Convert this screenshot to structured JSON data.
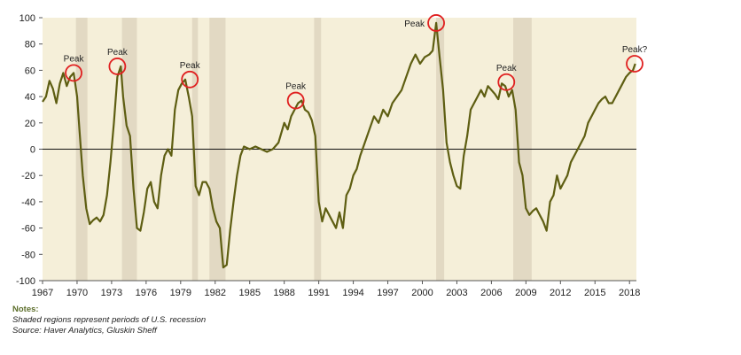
{
  "chart_data": {
    "type": "line",
    "xlim": [
      1967,
      2018.6
    ],
    "ylim": [
      -100,
      100
    ],
    "y_ticks": [
      100,
      80,
      60,
      40,
      20,
      0,
      -20,
      -40,
      -60,
      -80,
      -100
    ],
    "x_ticks": [
      1967,
      1970,
      1973,
      1976,
      1979,
      1982,
      1985,
      1988,
      1991,
      1994,
      1997,
      2000,
      2003,
      2006,
      2009,
      2012,
      2015,
      2018
    ],
    "zero_line": true,
    "grid": false,
    "colors": {
      "line": "#5e5e12",
      "plot_bg": "#f5efd9",
      "recession": "#e2d9c3",
      "peak_circle": "#e02020"
    },
    "recessions": [
      {
        "start": 1969.9,
        "end": 1970.9
      },
      {
        "start": 1973.9,
        "end": 1975.2
      },
      {
        "start": 1980.0,
        "end": 1980.5
      },
      {
        "start": 1981.5,
        "end": 1982.9
      },
      {
        "start": 1990.6,
        "end": 1991.2
      },
      {
        "start": 2001.2,
        "end": 2001.9
      },
      {
        "start": 2007.9,
        "end": 2009.5
      }
    ],
    "annotations": [
      {
        "label": "Peak",
        "x": 1969.7,
        "y": 58
      },
      {
        "label": "Peak",
        "x": 1973.5,
        "y": 63
      },
      {
        "label": "Peak",
        "x": 1979.8,
        "y": 53
      },
      {
        "label": "Peak",
        "x": 1989.0,
        "y": 37
      },
      {
        "label": "Peak",
        "x": 2001.2,
        "y": 96
      },
      {
        "label": "Peak",
        "x": 2007.3,
        "y": 51
      },
      {
        "label": "Peak?",
        "x": 2018.5,
        "y": 65
      }
    ],
    "series": [
      {
        "x": [
          1967.0,
          1967.3,
          1967.6,
          1967.9,
          1968.2,
          1968.5,
          1968.8,
          1969.1,
          1969.4,
          1969.7,
          1970.0,
          1970.2,
          1970.5,
          1970.8,
          1971.1,
          1971.4,
          1971.7,
          1972.0,
          1972.3,
          1972.6,
          1972.9,
          1973.2,
          1973.5,
          1973.8,
          1974.0,
          1974.3,
          1974.6,
          1974.9,
          1975.2,
          1975.5,
          1975.8,
          1976.1,
          1976.4,
          1976.7,
          1977.0,
          1977.3,
          1977.6,
          1977.9,
          1978.2,
          1978.5,
          1978.8,
          1979.1,
          1979.4,
          1979.7,
          1980.0,
          1980.3,
          1980.6,
          1980.9,
          1981.2,
          1981.5,
          1981.8,
          1982.1,
          1982.4,
          1982.7,
          1983.0,
          1983.3,
          1983.6,
          1983.9,
          1984.2,
          1984.5,
          1985.0,
          1985.5,
          1986.0,
          1986.5,
          1987.0,
          1987.5,
          1988.0,
          1988.3,
          1988.6,
          1988.9,
          1989.2,
          1989.5,
          1989.8,
          1990.1,
          1990.4,
          1990.7,
          1991.0,
          1991.3,
          1991.6,
          1991.9,
          1992.2,
          1992.5,
          1992.8,
          1993.1,
          1993.4,
          1993.7,
          1994.0,
          1994.3,
          1994.6,
          1995.0,
          1995.4,
          1995.8,
          1996.2,
          1996.6,
          1997.0,
          1997.4,
          1997.8,
          1998.2,
          1998.6,
          1999.0,
          1999.4,
          1999.8,
          2000.2,
          2000.6,
          2000.9,
          2001.2,
          2001.5,
          2001.8,
          2002.1,
          2002.4,
          2002.7,
          2003.0,
          2003.3,
          2003.6,
          2003.9,
          2004.2,
          2004.5,
          2004.8,
          2005.1,
          2005.4,
          2005.7,
          2006.0,
          2006.3,
          2006.6,
          2006.9,
          2007.2,
          2007.5,
          2007.8,
          2008.1,
          2008.4,
          2008.7,
          2009.0,
          2009.3,
          2009.6,
          2009.9,
          2010.2,
          2010.5,
          2010.8,
          2011.1,
          2011.4,
          2011.7,
          2012.0,
          2012.3,
          2012.6,
          2012.9,
          2013.2,
          2013.5,
          2013.8,
          2014.1,
          2014.4,
          2014.7,
          2015.0,
          2015.3,
          2015.6,
          2015.9,
          2016.2,
          2016.5,
          2016.8,
          2017.1,
          2017.4,
          2017.7,
          2018.0,
          2018.3,
          2018.5
        ],
        "values": [
          36,
          40,
          52,
          46,
          35,
          50,
          58,
          48,
          55,
          58,
          40,
          15,
          -20,
          -45,
          -57,
          -54,
          -52,
          -55,
          -50,
          -35,
          -10,
          20,
          55,
          63,
          40,
          18,
          10,
          -30,
          -60,
          -62,
          -48,
          -30,
          -25,
          -40,
          -45,
          -20,
          -5,
          0,
          -5,
          30,
          45,
          50,
          53,
          40,
          25,
          -28,
          -35,
          -25,
          -25,
          -30,
          -45,
          -55,
          -60,
          -90,
          -88,
          -62,
          -40,
          -20,
          -5,
          2,
          0,
          2,
          0,
          -2,
          0,
          5,
          20,
          15,
          25,
          30,
          35,
          37,
          30,
          28,
          22,
          10,
          -40,
          -55,
          -45,
          -50,
          -55,
          -60,
          -48,
          -60,
          -35,
          -30,
          -20,
          -15,
          -5,
          5,
          15,
          25,
          20,
          30,
          25,
          35,
          40,
          45,
          55,
          65,
          72,
          65,
          70,
          72,
          75,
          96,
          70,
          45,
          5,
          -10,
          -20,
          -28,
          -30,
          -5,
          10,
          30,
          35,
          40,
          45,
          40,
          48,
          45,
          42,
          38,
          50,
          48,
          40,
          45,
          30,
          -10,
          -20,
          -45,
          -50,
          -47,
          -45,
          -50,
          -55,
          -62,
          -40,
          -35,
          -20,
          -30,
          -25,
          -20,
          -10,
          -5,
          0,
          5,
          10,
          20,
          25,
          30,
          35,
          38,
          40,
          35,
          35,
          40,
          45,
          50,
          55,
          58,
          60,
          65
        ]
      }
    ]
  },
  "notes": {
    "heading": "Notes:",
    "line1": "Shaded regions represent periods of U.S. recession",
    "line2": "Source: Haver Analytics, Gluskin Sheff"
  }
}
